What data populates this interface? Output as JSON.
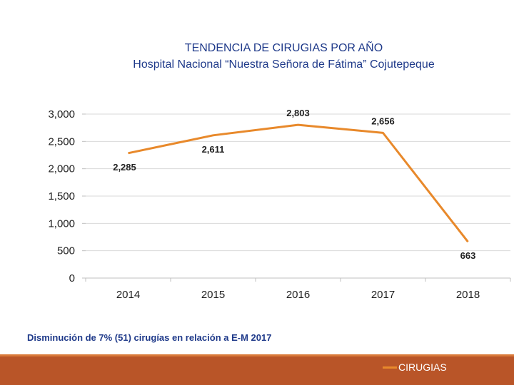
{
  "chart_data": {
    "type": "line",
    "title": "TENDENCIA DE CIRUGIAS POR AÑO",
    "subtitle": "Hospital Nacional “Nuestra Señora de Fátima” Cojutepeque",
    "categories": [
      "2014",
      "2015",
      "2016",
      "2017",
      "2018"
    ],
    "series": [
      {
        "name": "CIRUGIAS",
        "values": [
          2285,
          2611,
          2803,
          2656,
          663
        ],
        "color": "#e8892b"
      }
    ],
    "data_labels": [
      "2,285",
      "2,611",
      "2,803",
      "2,656",
      "663"
    ],
    "y_ticks": [
      0,
      500,
      1000,
      1500,
      2000,
      2500,
      3000
    ],
    "y_tick_labels": [
      "0",
      "500",
      "1,000",
      "1,500",
      "2,000",
      "2,500",
      "3,000"
    ],
    "ylim": [
      0,
      3000
    ],
    "grid": true,
    "legend": "bottom-right"
  },
  "note": "Disminución de 7% (51) cirugías en relación a E-M 2017",
  "colors": {
    "title": "#1f3a8a",
    "line": "#e8892b",
    "grid": "#d9d9d9",
    "footer": "#b95528"
  }
}
